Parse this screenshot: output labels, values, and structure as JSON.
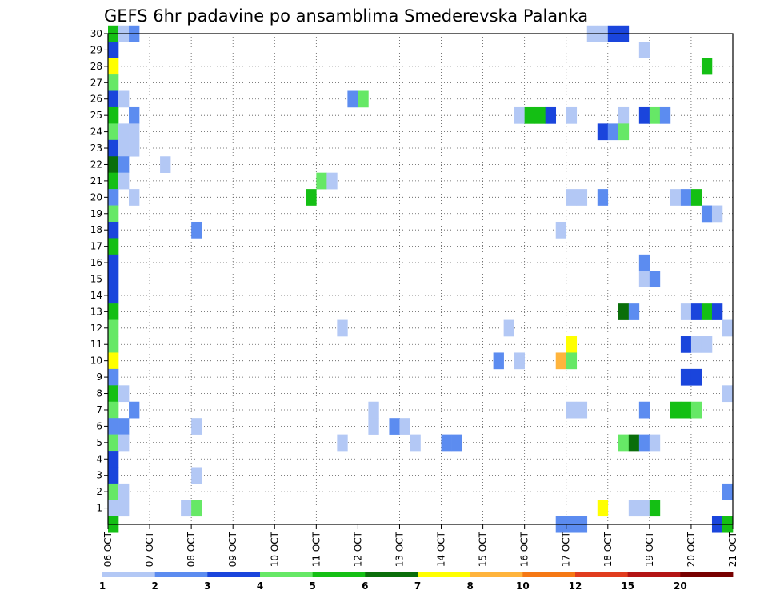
{
  "chart_data": {
    "type": "heatmap",
    "title": "GEFS 6hr padavine po ansamblima Smederevska Palanka",
    "xlabel": "",
    "ylabel": "",
    "x_tick_labels": [
      "06 OCT",
      "07 OCT",
      "08 OCT",
      "09 OCT",
      "10 OCT",
      "11 OCT",
      "12 OCT",
      "13 OCT",
      "14 OCT",
      "15 OCT",
      "16 OCT",
      "17 OCT",
      "18 OCT",
      "19 OCT",
      "20 OCT",
      "21 OCT"
    ],
    "y_tick_labels": [
      "1",
      "2",
      "3",
      "4",
      "5",
      "6",
      "7",
      "8",
      "9",
      "10",
      "11",
      "12",
      "13",
      "14",
      "15",
      "16",
      "17",
      "18",
      "19",
      "20",
      "21",
      "22",
      "23",
      "24",
      "25",
      "26",
      "27",
      "28",
      "29",
      "30"
    ],
    "x_range_steps": [
      0,
      60
    ],
    "y_range_members": [
      0,
      30
    ],
    "steps_per_day": 4,
    "grid": "dotted",
    "colorbar": {
      "colors": [
        "#b3c8f5",
        "#5c8cf0",
        "#1a45dc",
        "#66e866",
        "#14bf14",
        "#0a6e0a",
        "#ffff00",
        "#ffb43c",
        "#f57814",
        "#e13c1e",
        "#b41414",
        "#780000"
      ],
      "labels": [
        "1",
        "2",
        "3",
        "4",
        "5",
        "6",
        "7",
        "8",
        "10",
        "12",
        "15",
        "20"
      ]
    },
    "cells": [
      {
        "m": 30,
        "s": 1,
        "c": 5
      },
      {
        "m": 30,
        "s": 2,
        "c": 1
      },
      {
        "m": 30,
        "s": 3,
        "c": 2
      },
      {
        "m": 30,
        "s": 47,
        "c": 1
      },
      {
        "m": 30,
        "s": 48,
        "c": 1
      },
      {
        "m": 30,
        "s": 49,
        "c": 3
      },
      {
        "m": 30,
        "s": 50,
        "c": 3
      },
      {
        "m": 29,
        "s": 1,
        "c": 3
      },
      {
        "m": 29,
        "s": 52,
        "c": 1
      },
      {
        "m": 28,
        "s": 1,
        "c": 7
      },
      {
        "m": 28,
        "s": 58,
        "c": 5
      },
      {
        "m": 27,
        "s": 1,
        "c": 4
      },
      {
        "m": 26,
        "s": 1,
        "c": 3
      },
      {
        "m": 26,
        "s": 2,
        "c": 1
      },
      {
        "m": 26,
        "s": 24,
        "c": 2
      },
      {
        "m": 26,
        "s": 25,
        "c": 4
      },
      {
        "m": 25,
        "s": 1,
        "c": 5
      },
      {
        "m": 25,
        "s": 3,
        "c": 2
      },
      {
        "m": 25,
        "s": 40,
        "c": 1
      },
      {
        "m": 25,
        "s": 41,
        "c": 5
      },
      {
        "m": 25,
        "s": 42,
        "c": 5
      },
      {
        "m": 25,
        "s": 43,
        "c": 3
      },
      {
        "m": 25,
        "s": 45,
        "c": 1
      },
      {
        "m": 25,
        "s": 50,
        "c": 1
      },
      {
        "m": 25,
        "s": 52,
        "c": 3
      },
      {
        "m": 25,
        "s": 53,
        "c": 4
      },
      {
        "m": 25,
        "s": 54,
        "c": 2
      },
      {
        "m": 24,
        "s": 1,
        "c": 4
      },
      {
        "m": 24,
        "s": 2,
        "c": 1
      },
      {
        "m": 24,
        "s": 3,
        "c": 1
      },
      {
        "m": 24,
        "s": 48,
        "c": 3
      },
      {
        "m": 24,
        "s": 49,
        "c": 2
      },
      {
        "m": 24,
        "s": 50,
        "c": 4
      },
      {
        "m": 23,
        "s": 1,
        "c": 3
      },
      {
        "m": 23,
        "s": 2,
        "c": 1
      },
      {
        "m": 23,
        "s": 3,
        "c": 1
      },
      {
        "m": 22,
        "s": 1,
        "c": 6
      },
      {
        "m": 22,
        "s": 2,
        "c": 2
      },
      {
        "m": 22,
        "s": 6,
        "c": 1
      },
      {
        "m": 21,
        "s": 1,
        "c": 5
      },
      {
        "m": 21,
        "s": 2,
        "c": 1
      },
      {
        "m": 21,
        "s": 21,
        "c": 4
      },
      {
        "m": 21,
        "s": 22,
        "c": 1
      },
      {
        "m": 20,
        "s": 1,
        "c": 2
      },
      {
        "m": 20,
        "s": 3,
        "c": 1
      },
      {
        "m": 20,
        "s": 20,
        "c": 5
      },
      {
        "m": 20,
        "s": 45,
        "c": 1
      },
      {
        "m": 20,
        "s": 46,
        "c": 1
      },
      {
        "m": 20,
        "s": 48,
        "c": 2
      },
      {
        "m": 20,
        "s": 55,
        "c": 1
      },
      {
        "m": 20,
        "s": 56,
        "c": 2
      },
      {
        "m": 20,
        "s": 57,
        "c": 5
      },
      {
        "m": 19,
        "s": 1,
        "c": 4
      },
      {
        "m": 19,
        "s": 58,
        "c": 2
      },
      {
        "m": 19,
        "s": 59,
        "c": 1
      },
      {
        "m": 18,
        "s": 1,
        "c": 3
      },
      {
        "m": 18,
        "s": 9,
        "c": 2
      },
      {
        "m": 18,
        "s": 44,
        "c": 1
      },
      {
        "m": 17,
        "s": 1,
        "c": 5
      },
      {
        "m": 16,
        "s": 1,
        "c": 3
      },
      {
        "m": 16,
        "s": 52,
        "c": 2
      },
      {
        "m": 15,
        "s": 1,
        "c": 3
      },
      {
        "m": 15,
        "s": 52,
        "c": 1
      },
      {
        "m": 15,
        "s": 53,
        "c": 2
      },
      {
        "m": 14,
        "s": 1,
        "c": 3
      },
      {
        "m": 13,
        "s": 1,
        "c": 5
      },
      {
        "m": 13,
        "s": 50,
        "c": 6
      },
      {
        "m": 13,
        "s": 51,
        "c": 2
      },
      {
        "m": 13,
        "s": 56,
        "c": 1
      },
      {
        "m": 13,
        "s": 57,
        "c": 3
      },
      {
        "m": 13,
        "s": 58,
        "c": 5
      },
      {
        "m": 13,
        "s": 59,
        "c": 3
      },
      {
        "m": 12,
        "s": 1,
        "c": 4
      },
      {
        "m": 12,
        "s": 23,
        "c": 1
      },
      {
        "m": 12,
        "s": 39,
        "c": 1
      },
      {
        "m": 12,
        "s": 60,
        "c": 1
      },
      {
        "m": 11,
        "s": 1,
        "c": 4
      },
      {
        "m": 11,
        "s": 45,
        "c": 7
      },
      {
        "m": 11,
        "s": 56,
        "c": 3
      },
      {
        "m": 11,
        "s": 57,
        "c": 1
      },
      {
        "m": 11,
        "s": 58,
        "c": 1
      },
      {
        "m": 10,
        "s": 1,
        "c": 7
      },
      {
        "m": 10,
        "s": 38,
        "c": 2
      },
      {
        "m": 10,
        "s": 40,
        "c": 1
      },
      {
        "m": 10,
        "s": 44,
        "c": 8
      },
      {
        "m": 10,
        "s": 45,
        "c": 4
      },
      {
        "m": 9,
        "s": 1,
        "c": 2
      },
      {
        "m": 9,
        "s": 56,
        "c": 3
      },
      {
        "m": 9,
        "s": 57,
        "c": 3
      },
      {
        "m": 8,
        "s": 1,
        "c": 5
      },
      {
        "m": 8,
        "s": 2,
        "c": 1
      },
      {
        "m": 8,
        "s": 60,
        "c": 1
      },
      {
        "m": 7,
        "s": 1,
        "c": 4
      },
      {
        "m": 7,
        "s": 3,
        "c": 2
      },
      {
        "m": 7,
        "s": 26,
        "c": 1
      },
      {
        "m": 7,
        "s": 45,
        "c": 1
      },
      {
        "m": 7,
        "s": 46,
        "c": 1
      },
      {
        "m": 7,
        "s": 52,
        "c": 2
      },
      {
        "m": 7,
        "s": 55,
        "c": 5
      },
      {
        "m": 7,
        "s": 56,
        "c": 5
      },
      {
        "m": 7,
        "s": 57,
        "c": 4
      },
      {
        "m": 6,
        "s": 1,
        "c": 2
      },
      {
        "m": 6,
        "s": 2,
        "c": 2
      },
      {
        "m": 6,
        "s": 9,
        "c": 1
      },
      {
        "m": 6,
        "s": 26,
        "c": 1
      },
      {
        "m": 6,
        "s": 28,
        "c": 2
      },
      {
        "m": 6,
        "s": 29,
        "c": 1
      },
      {
        "m": 5,
        "s": 1,
        "c": 4
      },
      {
        "m": 5,
        "s": 2,
        "c": 1
      },
      {
        "m": 5,
        "s": 23,
        "c": 1
      },
      {
        "m": 5,
        "s": 30,
        "c": 1
      },
      {
        "m": 5,
        "s": 33,
        "c": 2
      },
      {
        "m": 5,
        "s": 34,
        "c": 2
      },
      {
        "m": 5,
        "s": 50,
        "c": 4
      },
      {
        "m": 5,
        "s": 51,
        "c": 6
      },
      {
        "m": 5,
        "s": 52,
        "c": 2
      },
      {
        "m": 5,
        "s": 53,
        "c": 1
      },
      {
        "m": 4,
        "s": 1,
        "c": 3
      },
      {
        "m": 3,
        "s": 1,
        "c": 3
      },
      {
        "m": 3,
        "s": 9,
        "c": 1
      },
      {
        "m": 2,
        "s": 1,
        "c": 4
      },
      {
        "m": 2,
        "s": 2,
        "c": 1
      },
      {
        "m": 2,
        "s": 60,
        "c": 2
      },
      {
        "m": 1,
        "s": 1,
        "c": 1
      },
      {
        "m": 1,
        "s": 2,
        "c": 1
      },
      {
        "m": 1,
        "s": 8,
        "c": 1
      },
      {
        "m": 1,
        "s": 9,
        "c": 4
      },
      {
        "m": 1,
        "s": 48,
        "c": 7
      },
      {
        "m": 1,
        "s": 51,
        "c": 1
      },
      {
        "m": 1,
        "s": 52,
        "c": 1
      },
      {
        "m": 1,
        "s": 53,
        "c": 5
      },
      {
        "m": 0,
        "s": 1,
        "c": 5
      },
      {
        "m": 0,
        "s": 44,
        "c": 2
      },
      {
        "m": 0,
        "s": 45,
        "c": 2
      },
      {
        "m": 0,
        "s": 46,
        "c": 2
      },
      {
        "m": 0,
        "s": 59,
        "c": 3
      },
      {
        "m": 0,
        "s": 60,
        "c": 5
      }
    ]
  }
}
